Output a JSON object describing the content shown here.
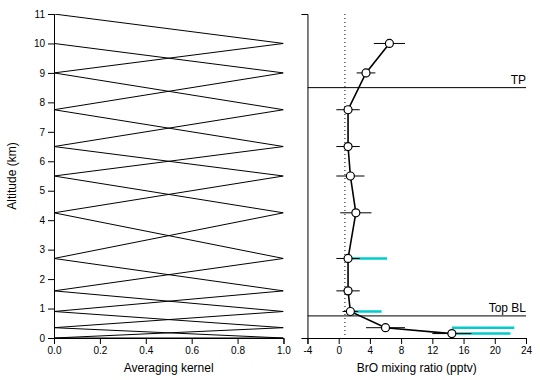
{
  "chart_data": [
    {
      "type": "line",
      "xlabel": "Averaging kernel",
      "ylabel": "Altitude (km)",
      "xlim": [
        0.0,
        1.0
      ],
      "ylim": [
        0,
        11
      ],
      "xticks": [
        {
          "value": 0.0,
          "label": "0.0"
        },
        0.2,
        0.4,
        0.6,
        0.8,
        {
          "value": 1.0,
          "label": "1.0"
        }
      ],
      "yticks": [
        0,
        1,
        2,
        3,
        4,
        5,
        6,
        7,
        8,
        9,
        10,
        11
      ],
      "series": [
        {
          "color": "#000000",
          "x": [
            0.0,
            1.0,
            0.0
          ],
          "values": [
            9.0,
            10.0,
            11.0
          ]
        },
        {
          "color": "#000000",
          "x": [
            0.0,
            1.0,
            0.0
          ],
          "values": [
            7.75,
            9.0,
            10.0
          ]
        },
        {
          "color": "#000000",
          "x": [
            0.0,
            1.0,
            0.0
          ],
          "values": [
            6.5,
            7.75,
            9.0
          ]
        },
        {
          "color": "#000000",
          "x": [
            0.0,
            1.0,
            0.0
          ],
          "values": [
            5.5,
            6.5,
            7.75
          ]
        },
        {
          "color": "#000000",
          "x": [
            0.0,
            1.0,
            0.0
          ],
          "values": [
            4.25,
            5.5,
            6.5
          ]
        },
        {
          "color": "#000000",
          "x": [
            0.0,
            1.0,
            0.0
          ],
          "values": [
            2.7,
            4.25,
            5.5
          ]
        },
        {
          "color": "#000000",
          "x": [
            0.0,
            1.0,
            0.0
          ],
          "values": [
            1.6,
            2.7,
            4.25
          ]
        },
        {
          "color": "#000000",
          "x": [
            0.0,
            1.0,
            0.0
          ],
          "values": [
            0.9,
            1.6,
            2.7
          ]
        },
        {
          "color": "#000000",
          "x": [
            0.0,
            1.0,
            0.0
          ],
          "values": [
            0.35,
            0.9,
            1.6
          ]
        },
        {
          "color": "#000000",
          "x": [
            0.0,
            1.0,
            0.0
          ],
          "values": [
            0.0,
            0.35,
            0.9
          ]
        },
        {
          "color": "#000000",
          "x": [
            0.0,
            1.0,
            0.0
          ],
          "values": [
            0.0,
            0.0,
            0.35
          ]
        }
      ]
    },
    {
      "type": "line",
      "xlabel": "BrO mixing ratio (pptv)",
      "xlim": [
        -4,
        24
      ],
      "ylim": [
        0,
        11
      ],
      "xticks": [
        -4,
        0,
        4,
        8,
        12,
        16,
        20,
        24
      ],
      "tick_labels": "x",
      "vlines": [
        {
          "value": 0.8,
          "color": "#000000",
          "line_style": "dotted"
        }
      ],
      "hlines": [
        {
          "value": 8.5,
          "label": "TP",
          "color": "#000000",
          "line_style": "solid"
        },
        {
          "value": 0.75,
          "label": "Top BL",
          "color": "#000000",
          "line_style": "solid"
        }
      ],
      "series": [
        {
          "type": "line",
          "color": "#000000",
          "line_style": "solid",
          "x": [
            6.5,
            3.5,
            1.2,
            1.2,
            1.5,
            2.2,
            1.2,
            1.2,
            1.5,
            6.0,
            14.5
          ],
          "values": [
            10.0,
            9.0,
            7.75,
            6.5,
            5.5,
            4.25,
            2.7,
            1.6,
            0.9,
            0.35,
            0.15
          ]
        },
        {
          "type": "scatter",
          "color": "#000000",
          "marker": "circle",
          "x": [
            6.5,
            3.5,
            1.2,
            1.2,
            1.5,
            2.2,
            1.2,
            1.2,
            1.5,
            6.0,
            14.5
          ],
          "values": [
            10.0,
            9.0,
            7.75,
            6.5,
            5.5,
            4.25,
            2.7,
            1.6,
            0.9,
            0.35,
            0.15
          ],
          "x_errors": [
            2.0,
            1.2,
            1.5,
            1.5,
            1.8,
            2.0,
            1.5,
            1.5,
            1.0,
            2.5,
            2.5
          ]
        },
        {
          "type": "errorbar",
          "color": "#00CCCC",
          "x": [
            1.2,
            1.5,
            14.5,
            14.5
          ],
          "values": [
            2.7,
            0.9,
            0.35,
            0.15
          ],
          "x_errors_upper": [
            5.0,
            4.0,
            8.0,
            7.5
          ]
        }
      ]
    }
  ]
}
